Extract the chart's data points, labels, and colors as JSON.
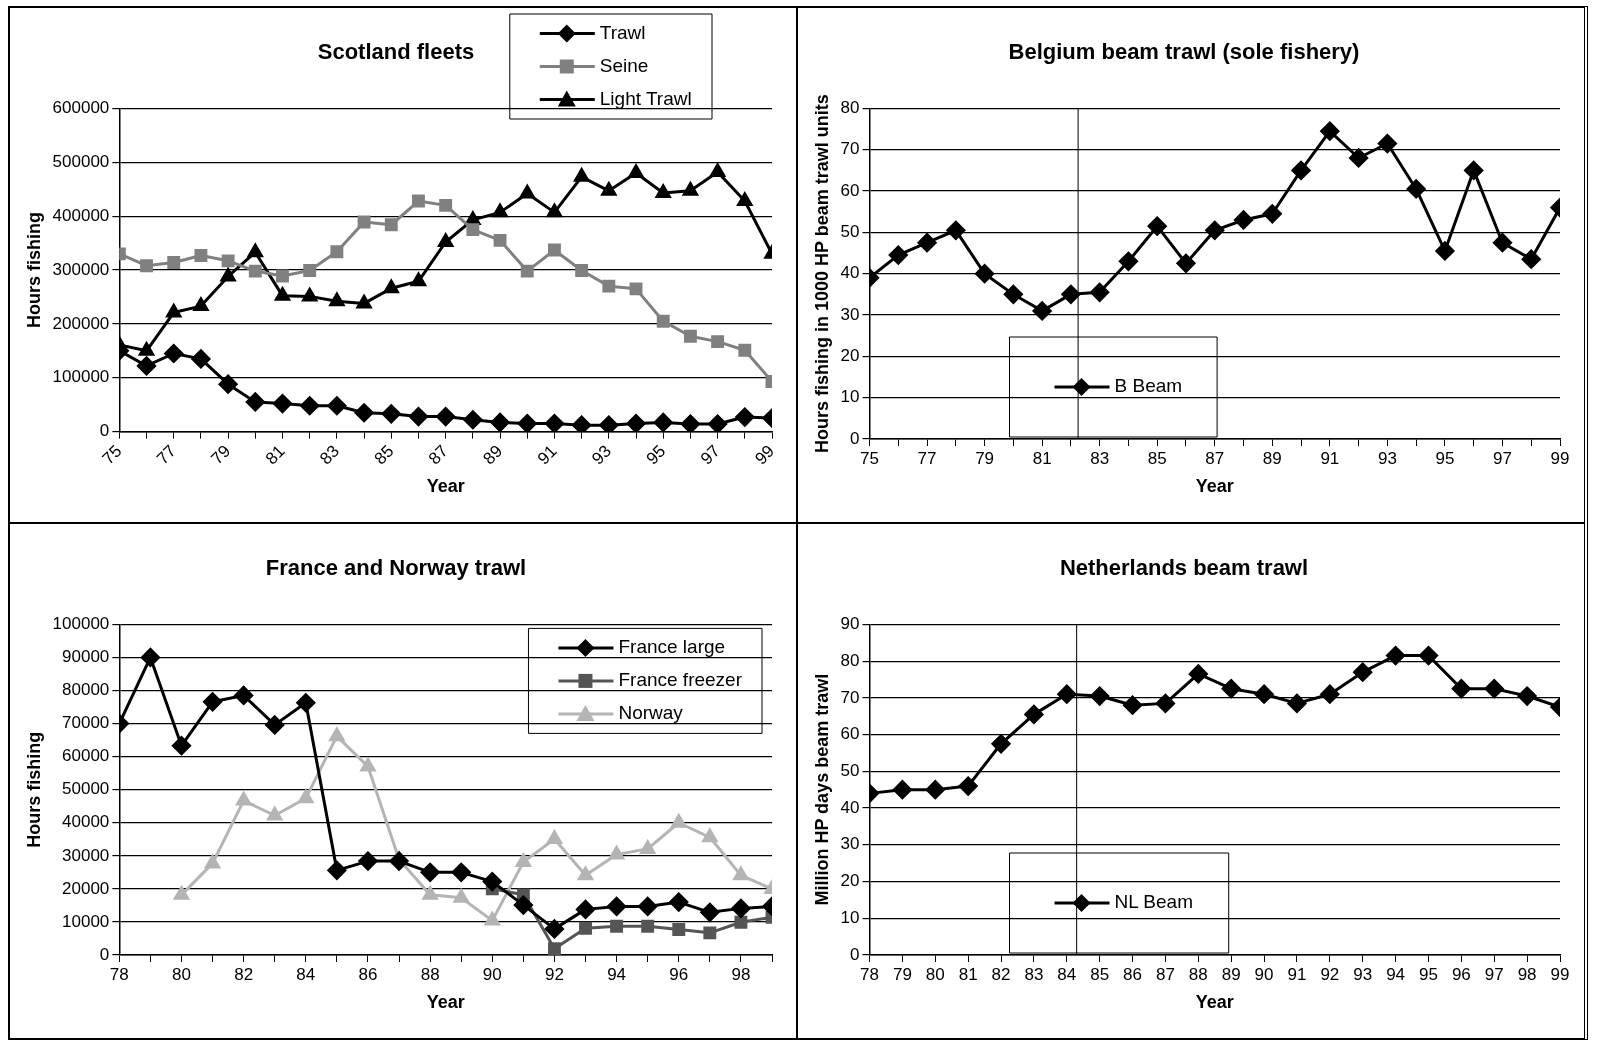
{
  "chart_data": [
    {
      "type": "line",
      "title": "Scotland fleets",
      "xlabel": "Year",
      "ylabel": "Hours fishing",
      "x": [
        75,
        76,
        77,
        78,
        79,
        80,
        81,
        82,
        83,
        84,
        85,
        86,
        87,
        88,
        89,
        90,
        91,
        92,
        93,
        94,
        95,
        96,
        97,
        98,
        99
      ],
      "xlim": [
        75,
        99
      ],
      "xticks": [
        75,
        {
          "value": 76,
          "label": null
        },
        77,
        {
          "value": 78,
          "label": null
        },
        79,
        {
          "value": 80,
          "label": null
        },
        81,
        {
          "value": 82,
          "label": null
        },
        83,
        {
          "value": 84,
          "label": null
        },
        85,
        {
          "value": 86,
          "label": null
        },
        87,
        {
          "value": 88,
          "label": null
        },
        89,
        {
          "value": 90,
          "label": null
        },
        91,
        {
          "value": 92,
          "label": null
        },
        93,
        {
          "value": 94,
          "label": null
        },
        95,
        {
          "value": 96,
          "label": null
        },
        97,
        {
          "value": 98,
          "label": null
        },
        99
      ],
      "ylim": [
        0,
        600000
      ],
      "yticks": [
        0,
        100000,
        200000,
        300000,
        400000,
        500000,
        600000
      ],
      "grid": "y",
      "legend": "top right",
      "series": [
        {
          "name": "Trawl",
          "color": "#000000",
          "marker": "diamond",
          "values": [
            150000,
            122000,
            145000,
            135000,
            88000,
            55000,
            52000,
            48000,
            48000,
            35000,
            33000,
            28000,
            28000,
            22000,
            17000,
            15000,
            15000,
            12000,
            12000,
            15000,
            17000,
            14000,
            14000,
            27000,
            25000
          ]
        },
        {
          "name": "Seine",
          "color": "#808080",
          "marker": "square",
          "values": [
            330000,
            308000,
            314000,
            327000,
            317000,
            298000,
            289000,
            299000,
            334000,
            389000,
            384000,
            428000,
            420000,
            375000,
            355000,
            298000,
            337000,
            299000,
            270000,
            265000,
            205000,
            177000,
            167000,
            151000,
            93000
          ]
        },
        {
          "name": "Light Trawl",
          "color": "#000000",
          "marker": "triangle",
          "values": [
            161000,
            150000,
            221000,
            233000,
            288000,
            333000,
            252000,
            251000,
            242000,
            238000,
            266000,
            279000,
            352000,
            393000,
            407000,
            442000,
            407000,
            473000,
            447000,
            480000,
            443000,
            447000,
            482000,
            428000,
            330000
          ]
        }
      ]
    },
    {
      "type": "line",
      "title": "Belgium beam trawl (sole fishery)",
      "xlabel": "Year",
      "ylabel": "Hours fishing in 1000 HP beam trawl units",
      "x": [
        75,
        76,
        77,
        78,
        79,
        80,
        81,
        82,
        83,
        84,
        85,
        86,
        87,
        88,
        89,
        90,
        91,
        92,
        93,
        94,
        95,
        96,
        97,
        98,
        99
      ],
      "xlim": [
        75,
        99
      ],
      "xticks": [
        75,
        {
          "value": 76,
          "label": null
        },
        77,
        {
          "value": 78,
          "label": null
        },
        79,
        {
          "value": 80,
          "label": null
        },
        81,
        {
          "value": 82,
          "label": null
        },
        83,
        {
          "value": 84,
          "label": null
        },
        85,
        {
          "value": 86,
          "label": null
        },
        87,
        {
          "value": 88,
          "label": null
        },
        89,
        {
          "value": 90,
          "label": null
        },
        91,
        {
          "value": 92,
          "label": null
        },
        93,
        {
          "value": 94,
          "label": null
        },
        95,
        {
          "value": 96,
          "label": null
        },
        97,
        {
          "value": 98,
          "label": null
        },
        99
      ],
      "ylim": [
        0,
        80
      ],
      "yticks": [
        0,
        10,
        20,
        30,
        40,
        50,
        60,
        70,
        80
      ],
      "grid": "y",
      "legend": "bottom left",
      "ref_lines": [
        {
          "axis": "x",
          "value": 82.25,
          "color": "#000000"
        }
      ],
      "series": [
        {
          "name": "B Beam",
          "color": "#000000",
          "marker": "diamond",
          "values": [
            39,
            44.5,
            47.5,
            50.5,
            40,
            35,
            31,
            35,
            35.5,
            43,
            51.5,
            42.5,
            50.5,
            53,
            54.5,
            65,
            74.5,
            68,
            71.5,
            60.5,
            45.5,
            65,
            47.5,
            43.5,
            56
          ]
        }
      ]
    },
    {
      "type": "line",
      "title": "France and Norway trawl",
      "xlabel": "Year",
      "ylabel": "Hours fishing",
      "x": [
        78,
        79,
        80,
        81,
        82,
        83,
        84,
        85,
        86,
        87,
        88,
        89,
        90,
        91,
        92,
        93,
        94,
        95,
        96,
        97,
        98,
        99
      ],
      "xlim": [
        78,
        99
      ],
      "xticks": [
        78,
        {
          "value": 79,
          "label": null
        },
        80,
        {
          "value": 81,
          "label": null
        },
        82,
        {
          "value": 83,
          "label": null
        },
        84,
        {
          "value": 85,
          "label": null
        },
        86,
        {
          "value": 87,
          "label": null
        },
        88,
        {
          "value": 89,
          "label": null
        },
        90,
        {
          "value": 91,
          "label": null
        },
        92,
        {
          "value": 93,
          "label": null
        },
        94,
        {
          "value": 95,
          "label": null
        },
        96,
        {
          "value": 97,
          "label": null
        },
        98,
        {
          "value": 99,
          "label": null
        }
      ],
      "ylim": [
        0,
        100000
      ],
      "yticks": [
        0,
        10000,
        20000,
        30000,
        40000,
        50000,
        60000,
        70000,
        80000,
        90000,
        100000
      ],
      "grid": "y",
      "legend": "right",
      "series": [
        {
          "name": "France large",
          "color": "#000000",
          "marker": "diamond",
          "values": [
            70000,
            90000,
            63300,
            76600,
            78500,
            69600,
            76300,
            25600,
            28400,
            28400,
            25000,
            25000,
            22200,
            15100,
            7900,
            13800,
            14700,
            14700,
            16000,
            12900,
            14100,
            14700
          ]
        },
        {
          "name": "France freezer",
          "color": "#555555",
          "marker": "square",
          "values": [
            null,
            null,
            null,
            null,
            null,
            null,
            null,
            null,
            null,
            null,
            null,
            null,
            20000,
            18200,
            1900,
            8100,
            8700,
            8700,
            7700,
            6700,
            9900,
            11400
          ]
        },
        {
          "name": "Norway",
          "color": "#b4b4b4",
          "marker": "triangle",
          "values": [
            null,
            null,
            18200,
            27700,
            46700,
            42200,
            47400,
            66200,
            57000,
            28900,
            18200,
            17300,
            10400,
            28100,
            35100,
            24100,
            30400,
            32100,
            40000,
            35600,
            24100,
            20000
          ]
        }
      ]
    },
    {
      "type": "line",
      "title": "Netherlands beam trawl",
      "xlabel": "Year",
      "ylabel": "Million HP days beam trawl",
      "x": [
        78,
        79,
        80,
        81,
        82,
        83,
        84,
        85,
        86,
        87,
        88,
        89,
        90,
        91,
        92,
        93,
        94,
        95,
        96,
        97,
        98,
        99
      ],
      "xlim": [
        78,
        99
      ],
      "xticks": [
        78,
        79,
        80,
        81,
        82,
        83,
        84,
        85,
        86,
        87,
        88,
        89,
        90,
        91,
        92,
        93,
        94,
        95,
        96,
        97,
        98,
        99
      ],
      "ylim": [
        0,
        90
      ],
      "yticks": [
        0,
        10,
        20,
        30,
        40,
        50,
        60,
        70,
        80,
        90
      ],
      "grid": "y",
      "legend": "bottom left",
      "ref_lines": [
        {
          "axis": "x",
          "value": 84.3,
          "color": "#000000"
        }
      ],
      "series": [
        {
          "name": "NL Beam",
          "color": "#000000",
          "marker": "diamond",
          "values": [
            44,
            45,
            45,
            46,
            57.5,
            65.5,
            71,
            70.5,
            68,
            68.5,
            76.5,
            72.5,
            71,
            68.5,
            71,
            77,
            81.5,
            81.5,
            72.5,
            72.5,
            70.5,
            67.5
          ]
        }
      ]
    }
  ]
}
